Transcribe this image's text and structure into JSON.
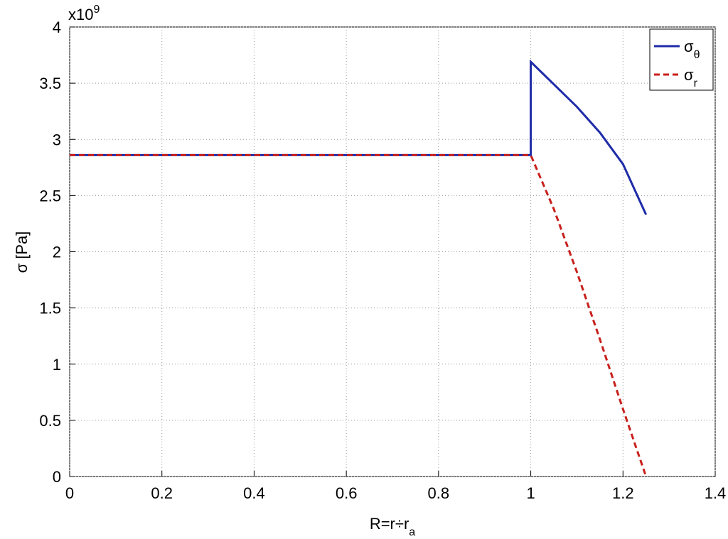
{
  "chart_data": {
    "type": "line",
    "x_label": "R=r÷ra",
    "y_label": "σ [Pa]",
    "y_multiplier": {
      "base": "x10",
      "power": "9"
    },
    "x": [
      0,
      1,
      1,
      1.05,
      1.1,
      1.15,
      1.2,
      1.25
    ],
    "series": [
      {
        "name": "σθ",
        "color": "#1f2ca8",
        "dash": "solid",
        "values": [
          2.86,
          2.86,
          3.69,
          3.49,
          3.29,
          3.06,
          2.78,
          2.33
        ]
      },
      {
        "name": "σr",
        "color": "#c8201c",
        "dash": "dashed",
        "values": [
          2.86,
          2.86,
          2.86,
          2.38,
          1.82,
          1.22,
          0.6,
          0
        ]
      }
    ],
    "xlim": [
      0,
      1.4
    ],
    "xticks": [
      0,
      0.2,
      0.4,
      0.6,
      0.8,
      1,
      1.2,
      1.4
    ],
    "ylim": [
      0,
      4
    ],
    "yticks": [
      0,
      0.5,
      1,
      1.5,
      2,
      2.5,
      3,
      3.5,
      4
    ],
    "grid": true,
    "legend": "top-right"
  }
}
